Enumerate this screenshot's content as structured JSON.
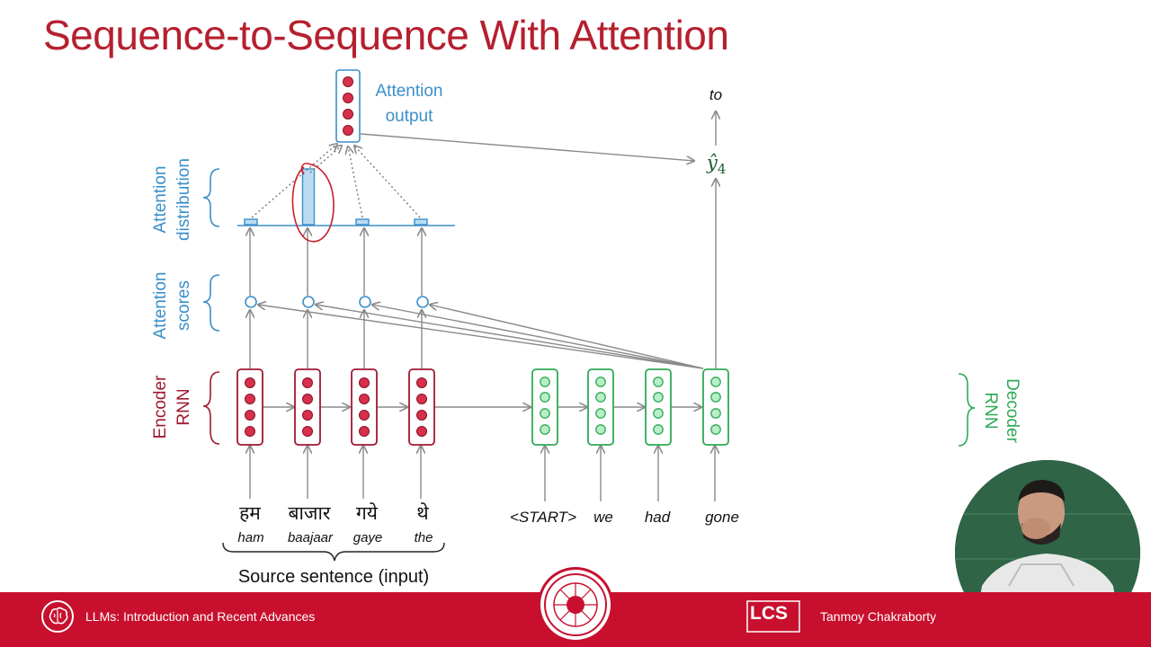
{
  "slide": {
    "title": "Sequence-to-Sequence With Attention"
  },
  "labels": {
    "attention_output": [
      "Attention",
      "output"
    ],
    "attention_distribution": [
      "Attention",
      "distribution"
    ],
    "attention_scores": [
      "Attention",
      "scores"
    ],
    "encoder_rnn": [
      "Encoder",
      "RNN"
    ],
    "decoder_rnn": [
      "Decoder",
      "RNN"
    ],
    "source_sentence": "Source sentence (input)",
    "output_word": "to",
    "prediction": "ŷ",
    "prediction_subscript": "4"
  },
  "source_words": [
    {
      "hindi": "हम",
      "roman": "ham"
    },
    {
      "hindi": "बाजार",
      "roman": "baajaar"
    },
    {
      "hindi": "गये",
      "roman": "gaye"
    },
    {
      "hindi": "थे",
      "roman": "the"
    }
  ],
  "decoder_inputs": [
    "<START>",
    "we",
    "had",
    "gone"
  ],
  "attention_weights": [
    0.06,
    0.9,
    0.06,
    0.06
  ],
  "footer": {
    "course_title": "LLMs: Introduction and Recent Advances",
    "presenter_name": "Tanmoy Chakraborty",
    "lab_logo_text": "LCS"
  },
  "colors": {
    "title": "#b5202f",
    "encoder": "#a01830",
    "encoder_dot": "#d6304a",
    "decoder": "#2eaa55",
    "decoder_dot": "#b8eec8",
    "attention": "#3b8fc9",
    "attention_fill": "#b9dcf3",
    "arrow": "#8a8a8a",
    "footer": "#c8102e",
    "annotation": "#c81e2e"
  }
}
